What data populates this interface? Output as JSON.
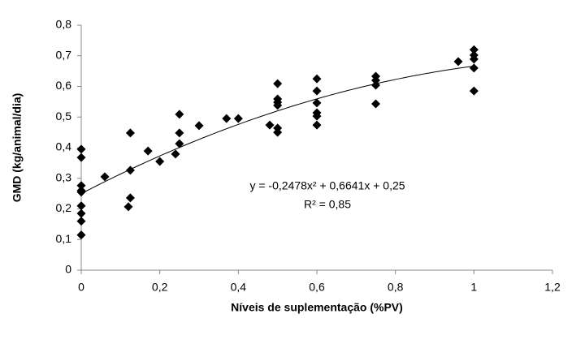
{
  "chart_data": {
    "type": "scatter",
    "x_label": "Níveis de suplementação (%PV)",
    "y_label": "GMD (kg/animal/dia)",
    "x": [
      0,
      0,
      0,
      0,
      0,
      0,
      0,
      0,
      0,
      0.06,
      0.12,
      0.125,
      0.125,
      0.125,
      0.17,
      0.2,
      0.24,
      0.25,
      0.25,
      0.25,
      0.3,
      0.37,
      0.4,
      0.48,
      0.5,
      0.5,
      0.5,
      0.5,
      0.5,
      0.5,
      0.6,
      0.6,
      0.6,
      0.6,
      0.6,
      0.6,
      0.75,
      0.75,
      0.75,
      0.75,
      0.96,
      1,
      1,
      1,
      1,
      1
    ],
    "values": [
      0.395,
      0.368,
      0.276,
      0.26,
      0.255,
      0.21,
      0.185,
      0.16,
      0.115,
      0.305,
      0.207,
      0.448,
      0.326,
      0.236,
      0.389,
      0.355,
      0.379,
      0.509,
      0.448,
      0.413,
      0.472,
      0.495,
      0.495,
      0.474,
      0.609,
      0.559,
      0.548,
      0.538,
      0.464,
      0.45,
      0.625,
      0.585,
      0.546,
      0.514,
      0.503,
      0.474,
      0.633,
      0.62,
      0.604,
      0.543,
      0.681,
      0.72,
      0.702,
      0.689,
      0.66,
      0.585
    ],
    "color": "#000000",
    "xlim": [
      0,
      1.2
    ],
    "xticks": [
      0,
      {
        "value": 0.2,
        "label": "0,2"
      },
      {
        "value": 0.4,
        "label": "0,4"
      },
      {
        "value": 0.6,
        "label": "0,6"
      },
      {
        "value": 0.8,
        "label": "0,8"
      },
      1,
      {
        "value": 1.2,
        "label": "1,2"
      }
    ],
    "ylim": [
      0,
      0.8
    ],
    "yticks": [
      0,
      {
        "value": 0.1,
        "label": "0,1"
      },
      {
        "value": 0.2,
        "label": "0,2"
      },
      {
        "value": 0.3,
        "label": "0,3"
      },
      {
        "value": 0.4,
        "label": "0,4"
      },
      {
        "value": 0.5,
        "label": "0,5"
      },
      {
        "value": 0.6,
        "label": "0,6"
      },
      {
        "value": 0.7,
        "label": "0,7"
      },
      {
        "value": 0.8,
        "label": "0,8"
      }
    ],
    "trendline": {
      "coefficients": [
        -0.2478,
        0.6641,
        0.25
      ],
      "equation": "y = -0,2478x² + 0,6641x + 0,25",
      "r_squared": 0.85,
      "r_squared_label": "R² = 0,85"
    }
  }
}
